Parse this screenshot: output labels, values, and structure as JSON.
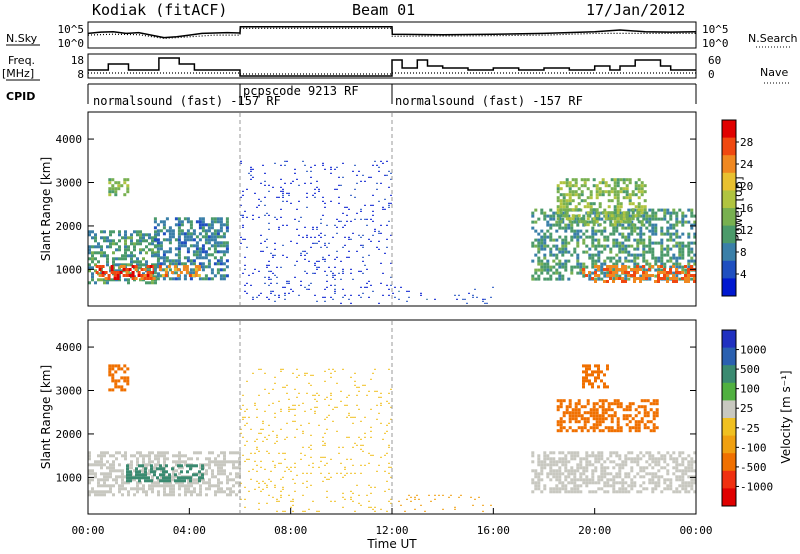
{
  "header": {
    "station": "Kodiak (fitACF)",
    "beam": "Beam 01",
    "date": "17/Jan/2012"
  },
  "left_labels": {
    "nsky": "N.Sky",
    "freq": "Freq.",
    "freq_unit": "[MHz]",
    "cpid": "CPID"
  },
  "right_labels": {
    "nsearch": "N.Search",
    "nave": "Nave"
  },
  "chart_data": [
    {
      "type": "line",
      "name": "noise",
      "yticks_left": [
        "10^5",
        "10^0"
      ],
      "yticks_right": [
        "10^5",
        "10^0"
      ],
      "series": [
        {
          "name": "N.Sky",
          "style": "solid",
          "x": [
            0,
            0.5,
            1,
            1.5,
            2,
            2.5,
            3,
            3.5,
            4,
            4.5,
            5,
            5.5,
            6,
            6.01,
            8,
            10,
            12,
            12.01,
            14,
            16,
            18,
            20,
            21,
            22,
            23,
            24
          ],
          "y": [
            3.0,
            3.3,
            3.4,
            3.0,
            3.2,
            2.6,
            2.0,
            2.2,
            2.6,
            3.0,
            3.1,
            3.2,
            3.1,
            4.6,
            4.6,
            4.6,
            4.6,
            2.8,
            2.7,
            2.8,
            3.0,
            3.4,
            3.8,
            3.4,
            3.3,
            3.4
          ]
        },
        {
          "name": "N.Search",
          "style": "dotted",
          "x": [
            0,
            1,
            2,
            3,
            4,
            5,
            6,
            6.01,
            9,
            12,
            12.01,
            15,
            18,
            20,
            22,
            24
          ],
          "y": [
            2.6,
            2.8,
            2.7,
            1.8,
            2.2,
            2.6,
            2.6,
            4.2,
            4.2,
            4.2,
            2.3,
            2.4,
            2.6,
            3.0,
            3.0,
            3.0
          ]
        }
      ]
    },
    {
      "type": "line",
      "name": "frequency",
      "yticks_left": [
        "18",
        "8"
      ],
      "yticks_right": [
        "60",
        "0"
      ],
      "series": [
        {
          "name": "Freq.",
          "style": "solid",
          "x": [
            0,
            0.8,
            0.8,
            1.6,
            1.6,
            2.8,
            2.8,
            3.6,
            3.6,
            4.2,
            4.2,
            6,
            6,
            12,
            12,
            12.4,
            12.4,
            13,
            13,
            13.4,
            13.4,
            14,
            14,
            15,
            15,
            16,
            16,
            17,
            17,
            18,
            18,
            19,
            19,
            20,
            20,
            20.6,
            20.6,
            21,
            21,
            21.6,
            21.6,
            22.6,
            22.6,
            23,
            23,
            24
          ],
          "y": [
            11,
            11,
            14,
            14,
            11,
            11,
            17,
            17,
            14,
            14,
            11,
            11,
            8,
            8,
            16,
            16,
            12,
            12,
            16,
            16,
            13,
            13,
            12,
            12,
            11,
            11,
            12,
            12,
            11,
            11,
            12,
            12,
            11,
            11,
            13,
            13,
            11,
            11,
            13,
            13,
            16,
            16,
            13,
            13,
            11,
            11
          ]
        },
        {
          "name": "Nave",
          "style": "dotted",
          "x": [
            0,
            6,
            6,
            12,
            12,
            24
          ],
          "y": [
            9.5,
            9.5,
            9,
            9,
            9.5,
            9.5
          ]
        }
      ]
    },
    {
      "type": "table",
      "name": "cpid",
      "entries": [
        {
          "start": 0,
          "end": 6,
          "label": "normalsound (fast) -157 RF"
        },
        {
          "start": 6,
          "end": 12,
          "label": "pcpscode 9213 RF"
        },
        {
          "start": 12,
          "end": 24,
          "label": "normalsound (fast) -157 RF"
        }
      ]
    },
    {
      "type": "heatmap",
      "name": "power",
      "ylabel": "Slant Range [km]",
      "yticks": [
        1000,
        2000,
        3000,
        4000
      ],
      "ylim": [
        180,
        4600
      ],
      "xlim": [
        0,
        24
      ],
      "colorbar_label": "Power [dB]",
      "colorbar_ticks": [
        4,
        8,
        12,
        16,
        20,
        24,
        28
      ],
      "colorbar_colors": [
        "#0018d0",
        "#1f4fc0",
        "#3a7fa8",
        "#4b9a6a",
        "#78b050",
        "#b0c440",
        "#e8c030",
        "#f08820",
        "#f04810",
        "#e00000"
      ],
      "regions": [
        {
          "t0": 0.0,
          "t1": 2.8,
          "r0": 700,
          "r1": 1900,
          "value": 12
        },
        {
          "t0": 0.3,
          "t1": 2.6,
          "r0": 800,
          "r1": 1100,
          "value": 28
        },
        {
          "t0": 2.6,
          "t1": 5.5,
          "r0": 800,
          "r1": 2200,
          "value": 10
        },
        {
          "t0": 2.8,
          "t1": 4.4,
          "r0": 850,
          "r1": 1100,
          "value": 24
        },
        {
          "t0": 0.8,
          "t1": 1.6,
          "r0": 2700,
          "r1": 3100,
          "value": 16
        },
        {
          "t0": 6.0,
          "t1": 12.0,
          "r0": 200,
          "r1": 3500,
          "value": 4
        },
        {
          "t0": 12.0,
          "t1": 16.0,
          "r0": 200,
          "r1": 600,
          "value": 6
        },
        {
          "t0": 17.5,
          "t1": 24.0,
          "r0": 800,
          "r1": 2400,
          "value": 12
        },
        {
          "t0": 19.5,
          "t1": 24.0,
          "r0": 750,
          "r1": 1100,
          "value": 26
        },
        {
          "t0": 18.5,
          "t1": 22.0,
          "r0": 2000,
          "r1": 3100,
          "value": 16
        }
      ]
    },
    {
      "type": "heatmap",
      "name": "velocity",
      "ylabel": "Slant Range [km]",
      "xlabel": "Time UT",
      "xticks": [
        "00:00",
        "04:00",
        "08:00",
        "12:00",
        "16:00",
        "20:00",
        "00:00"
      ],
      "yticks": [
        1000,
        2000,
        3000,
        4000
      ],
      "ylim": [
        180,
        4600
      ],
      "xlim": [
        0,
        24
      ],
      "colorbar_label": "Velocity [m s⁻¹]",
      "colorbar_ticks": [
        1000,
        500,
        100,
        25,
        -25,
        -100,
        -500,
        -1000
      ],
      "colorbar_colors": [
        "#2030c0",
        "#2a60b0",
        "#3a8a70",
        "#50b040",
        "#c8c8c0",
        "#f0c020",
        "#f0a010",
        "#f07000",
        "#f03010",
        "#e00000"
      ],
      "regions": [
        {
          "t0": 0.0,
          "t1": 6.0,
          "r0": 600,
          "r1": 1600,
          "value": 0
        },
        {
          "t0": 1.5,
          "t1": 4.5,
          "r0": 900,
          "r1": 1300,
          "value": 150
        },
        {
          "t0": 0.8,
          "t1": 1.6,
          "r0": 3000,
          "r1": 3600,
          "value": -300
        },
        {
          "t0": 6.0,
          "t1": 12.0,
          "r0": 200,
          "r1": 3500,
          "value": -80
        },
        {
          "t0": 12.0,
          "t1": 16.0,
          "r0": 200,
          "r1": 600,
          "value": -150
        },
        {
          "t0": 17.5,
          "t1": 24.0,
          "r0": 650,
          "r1": 1600,
          "value": 0
        },
        {
          "t0": 18.5,
          "t1": 22.5,
          "r0": 2100,
          "r1": 2800,
          "value": -400
        },
        {
          "t0": 19.5,
          "t1": 20.5,
          "r0": 3100,
          "r1": 3600,
          "value": -300
        }
      ]
    }
  ]
}
